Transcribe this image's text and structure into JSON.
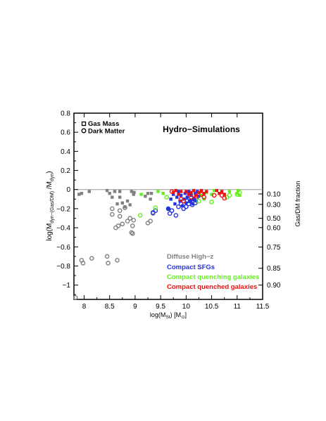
{
  "chart_data": {
    "type": "scatter",
    "title": "Hydro−Simulations",
    "xlabel": {
      "base": "log(M",
      "sub": "St",
      "rest": ") [M",
      "sub2": "⊙",
      "end": "]"
    },
    "ylabel": {
      "base": "log(M",
      "sub": "dyn−(Gas/DM)",
      "rest": " /M",
      "sub2": "dyn",
      "end": ")"
    },
    "y2label": "Gas/DM fraction",
    "xlim": [
      7.8,
      11.5
    ],
    "ylim": [
      -1.15,
      0.8
    ],
    "xticks": [
      "8",
      "8.5",
      "9",
      "9.5",
      "10",
      "10.5",
      "11",
      "11.5"
    ],
    "yticks": [
      "0.8",
      "0.6",
      "0.4",
      "0.2",
      "0",
      "−0.2",
      "−0.4",
      "−0.6",
      "−0.8",
      "−1"
    ],
    "y2ticks": [
      "0.10",
      "0.30",
      "0.50",
      "0.60",
      "0.75",
      "0.85",
      "0.90"
    ],
    "reference_line_y": 0,
    "marker_legend": [
      {
        "label": "Gas Mass",
        "marker": "square"
      },
      {
        "label": "Dark Matter",
        "marker": "circle"
      }
    ],
    "series": [
      {
        "name": "Diffuse High−z",
        "color": "#808080",
        "gas": [
          [
            7.9,
            -0.05
          ],
          [
            7.95,
            -0.04
          ],
          [
            8.1,
            -0.02
          ],
          [
            8.45,
            -0.01
          ],
          [
            8.5,
            -0.04
          ],
          [
            8.55,
            -0.08
          ],
          [
            8.6,
            -0.02
          ],
          [
            8.65,
            -0.15
          ],
          [
            8.7,
            -0.08
          ],
          [
            8.7,
            -0.02
          ],
          [
            8.75,
            -0.14
          ],
          [
            8.8,
            -0.18
          ],
          [
            8.85,
            -0.12
          ],
          [
            8.9,
            -0.16
          ],
          [
            8.93,
            -0.02
          ],
          [
            8.97,
            -0.05
          ],
          [
            8.98,
            -0.03
          ],
          [
            9.2,
            -0.07
          ],
          [
            9.25,
            -0.04
          ],
          [
            9.3,
            -0.1
          ],
          [
            9.32,
            -0.04
          ]
        ],
        "dm": [
          [
            7.83,
            -1.13
          ],
          [
            7.95,
            -0.74
          ],
          [
            7.98,
            -0.77
          ],
          [
            8.15,
            -0.72
          ],
          [
            8.45,
            -0.7
          ],
          [
            8.47,
            -0.77
          ],
          [
            8.55,
            -0.2
          ],
          [
            8.55,
            -0.26
          ],
          [
            8.62,
            -0.4
          ],
          [
            8.65,
            -0.74
          ],
          [
            8.67,
            -0.38
          ],
          [
            8.7,
            -0.28
          ],
          [
            8.7,
            -0.22
          ],
          [
            8.75,
            -0.36
          ],
          [
            8.8,
            -0.19
          ],
          [
            8.85,
            -0.33
          ],
          [
            8.9,
            -0.3
          ],
          [
            8.93,
            -0.45
          ],
          [
            8.95,
            -0.38
          ],
          [
            8.95,
            -0.46
          ],
          [
            8.97,
            -0.32
          ],
          [
            9.25,
            -0.35
          ],
          [
            9.3,
            -0.33
          ],
          [
            9.35,
            -0.25
          ]
        ]
      },
      {
        "name": "Compact SFGs",
        "color": "#2233dd",
        "gas": [
          [
            9.65,
            -0.2
          ],
          [
            9.7,
            -0.1
          ],
          [
            9.75,
            -0.05
          ],
          [
            9.78,
            -0.15
          ],
          [
            9.82,
            -0.08
          ],
          [
            9.85,
            -0.02
          ],
          [
            9.88,
            -0.12
          ],
          [
            9.9,
            -0.06
          ],
          [
            9.93,
            -0.17
          ],
          [
            9.96,
            -0.1
          ],
          [
            9.98,
            -0.04
          ],
          [
            10.0,
            -0.14
          ],
          [
            10.02,
            -0.08
          ],
          [
            10.05,
            -0.02
          ],
          [
            10.08,
            -0.12
          ],
          [
            10.1,
            -0.06
          ],
          [
            10.13,
            -0.15
          ],
          [
            10.15,
            -0.1
          ],
          [
            10.18,
            -0.04
          ],
          [
            10.2,
            -0.12
          ],
          [
            10.22,
            -0.02
          ],
          [
            10.25,
            -0.07
          ]
        ],
        "dm": [
          [
            9.35,
            -0.24
          ],
          [
            9.4,
            -0.22
          ],
          [
            9.65,
            -0.2
          ],
          [
            9.68,
            -0.25
          ],
          [
            9.72,
            -0.22
          ],
          [
            9.8,
            -0.27
          ],
          [
            9.85,
            -0.18
          ],
          [
            9.9,
            -0.15
          ],
          [
            9.95,
            -0.2
          ],
          [
            10.0,
            -0.18
          ],
          [
            10.02,
            -0.12
          ],
          [
            10.05,
            -0.15
          ],
          [
            10.08,
            -0.12
          ],
          [
            10.1,
            -0.08
          ],
          [
            10.12,
            -0.16
          ],
          [
            10.15,
            -0.1
          ],
          [
            10.18,
            -0.14
          ],
          [
            10.2,
            -0.09
          ]
        ]
      },
      {
        "name": "Compact quenching galaxies",
        "color": "#66ee22",
        "gas": [
          [
            9.12,
            -0.05
          ],
          [
            9.45,
            -0.02
          ],
          [
            9.55,
            -0.04
          ],
          [
            10.3,
            -0.06
          ],
          [
            10.35,
            -0.1
          ],
          [
            10.4,
            -0.03
          ],
          [
            10.5,
            -0.05
          ],
          [
            10.55,
            -0.01
          ],
          [
            10.85,
            -0.02
          ],
          [
            11.0,
            -0.04
          ],
          [
            11.02,
            -0.01
          ],
          [
            11.05,
            -0.06
          ]
        ],
        "dm": [
          [
            9.1,
            -0.27
          ],
          [
            9.4,
            -0.19
          ],
          [
            9.62,
            -0.08
          ],
          [
            10.25,
            -0.12
          ],
          [
            10.5,
            -0.13
          ],
          [
            10.8,
            -0.08
          ],
          [
            10.85,
            -0.06
          ],
          [
            11.0,
            -0.05
          ],
          [
            11.05,
            -0.03
          ]
        ]
      },
      {
        "name": "Compact quenched galaxies",
        "color": "#ee1111",
        "gas": [
          [
            9.75,
            -0.03
          ],
          [
            9.8,
            -0.01
          ],
          [
            9.85,
            -0.05
          ],
          [
            9.9,
            -0.02
          ],
          [
            10.0,
            -0.02
          ],
          [
            10.05,
            -0.05
          ],
          [
            10.1,
            -0.03
          ],
          [
            10.15,
            -0.01
          ],
          [
            10.2,
            -0.06
          ],
          [
            10.25,
            -0.03
          ],
          [
            10.3,
            -0.01
          ],
          [
            10.35,
            -0.04
          ],
          [
            10.4,
            -0.02
          ],
          [
            10.6,
            -0.01
          ],
          [
            10.65,
            -0.04
          ],
          [
            10.7,
            -0.02
          ],
          [
            10.75,
            -0.05
          ]
        ],
        "dm": [
          [
            9.72,
            -0.02
          ],
          [
            9.9,
            -0.1
          ],
          [
            9.95,
            -0.12
          ],
          [
            10.1,
            -0.08
          ],
          [
            10.2,
            -0.07
          ],
          [
            10.3,
            -0.05
          ],
          [
            10.35,
            -0.08
          ],
          [
            10.55,
            -0.06
          ],
          [
            10.7,
            -0.06
          ],
          [
            10.75,
            -0.09
          ]
        ]
      }
    ]
  }
}
